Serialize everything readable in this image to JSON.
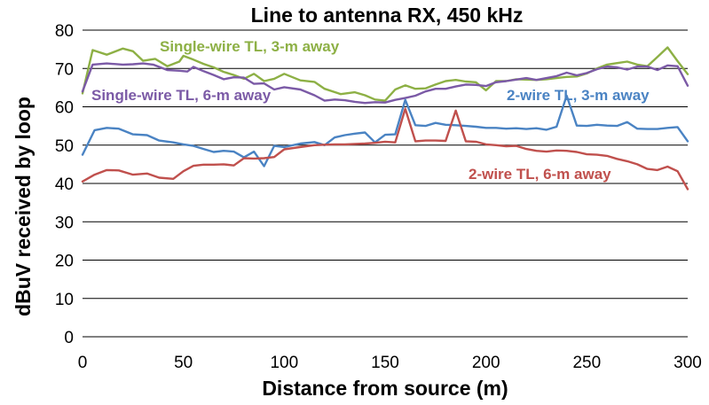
{
  "chart_data": {
    "type": "line",
    "title": "Line to antenna RX, 450 kHz",
    "xlabel": "Distance from source (m)",
    "ylabel": "dBuV received by loop",
    "xlim": [
      0,
      300
    ],
    "ylim": [
      0,
      80
    ],
    "xticks": [
      "0",
      "50",
      "100",
      "150",
      "200",
      "250",
      "300"
    ],
    "yticks": [
      "0",
      "10",
      "20",
      "30",
      "40",
      "50",
      "60",
      "70",
      "80"
    ],
    "grid": "horizontal",
    "series": [
      {
        "name": "Single-wire TL, 3-m away",
        "color": "#8db045",
        "x": [
          0,
          5,
          12,
          20,
          25,
          30,
          36,
          42,
          48,
          50,
          55,
          60,
          65,
          70,
          75,
          80,
          85,
          90,
          95,
          100,
          108,
          115,
          120,
          128,
          135,
          140,
          145,
          150,
          155,
          160,
          165,
          170,
          175,
          180,
          185,
          190,
          195,
          200,
          205,
          210,
          215,
          220,
          225,
          230,
          235,
          240,
          245,
          250,
          255,
          260,
          265,
          270,
          275,
          280,
          285,
          290,
          295,
          300
        ],
        "y": [
          63.5,
          74.8,
          73.6,
          75.2,
          74.5,
          72.0,
          72.5,
          70.6,
          71.8,
          73.3,
          72.3,
          71.2,
          70.3,
          69.1,
          68.3,
          67.3,
          68.6,
          66.7,
          67.3,
          68.6,
          66.9,
          66.5,
          64.7,
          63.3,
          63.8,
          63.0,
          61.9,
          61.6,
          64.5,
          65.6,
          64.7,
          64.8,
          65.8,
          66.7,
          67.0,
          66.6,
          66.4,
          64.3,
          66.7,
          66.7,
          67.2,
          67.1,
          67.0,
          67.2,
          67.5,
          67.8,
          67.9,
          68.7,
          70.0,
          71.0,
          71.4,
          71.8,
          71.0,
          70.6,
          73.0,
          75.5,
          71.9,
          68.5
        ]
      },
      {
        "name": "Single-wire TL, 6-m away",
        "color": "#7b5aa6",
        "x": [
          0,
          5,
          12,
          20,
          25,
          30,
          35,
          42,
          48,
          52,
          55,
          60,
          65,
          70,
          75,
          80,
          85,
          90,
          95,
          100,
          108,
          115,
          120,
          125,
          130,
          135,
          140,
          145,
          150,
          155,
          160,
          165,
          170,
          175,
          180,
          185,
          190,
          195,
          200,
          205,
          210,
          215,
          220,
          225,
          230,
          235,
          240,
          245,
          250,
          255,
          260,
          265,
          270,
          275,
          280,
          285,
          290,
          295,
          300
        ],
        "y": [
          64.0,
          71.0,
          71.3,
          71.0,
          71.1,
          71.3,
          71.0,
          69.6,
          69.4,
          69.2,
          70.4,
          69.3,
          68.3,
          67.2,
          67.7,
          67.6,
          66.0,
          66.1,
          64.5,
          65.1,
          64.5,
          63.0,
          61.6,
          61.9,
          61.7,
          61.3,
          61.0,
          61.2,
          61.1,
          61.8,
          62.3,
          62.9,
          64.0,
          64.7,
          64.7,
          65.3,
          65.8,
          65.7,
          65.4,
          66.4,
          66.7,
          67.1,
          67.5,
          67.0,
          67.5,
          68.0,
          68.9,
          68.2,
          68.8,
          69.8,
          70.5,
          70.3,
          69.7,
          70.5,
          70.5,
          69.6,
          70.8,
          70.6,
          65.5
        ]
      },
      {
        "name": "2-wire TL, 3-m away",
        "color": "#4a83c3",
        "x": [
          0,
          6,
          12,
          18,
          25,
          32,
          38,
          45,
          50,
          55,
          60,
          65,
          70,
          75,
          80,
          85,
          90,
          95,
          100,
          108,
          115,
          120,
          125,
          130,
          135,
          140,
          145,
          150,
          155,
          160,
          165,
          170,
          175,
          180,
          185,
          190,
          195,
          200,
          205,
          210,
          215,
          220,
          225,
          230,
          235,
          240,
          245,
          250,
          255,
          260,
          265,
          270,
          275,
          280,
          285,
          290,
          295,
          300
        ],
        "y": [
          47.5,
          53.9,
          54.5,
          54.3,
          52.8,
          52.6,
          51.2,
          50.7,
          50.2,
          49.8,
          49.0,
          48.2,
          48.5,
          48.3,
          46.8,
          48.3,
          44.5,
          49.8,
          49.5,
          50.4,
          50.8,
          50.0,
          52.0,
          52.6,
          53.0,
          53.3,
          50.7,
          52.7,
          52.8,
          61.8,
          55.2,
          55.0,
          55.8,
          55.3,
          55.2,
          55.0,
          54.8,
          54.5,
          54.5,
          54.3,
          54.4,
          54.2,
          54.4,
          54.0,
          54.8,
          62.9,
          55.1,
          55.0,
          55.3,
          55.1,
          55.0,
          56.0,
          54.3,
          54.2,
          54.2,
          54.5,
          54.7,
          51.0
        ]
      },
      {
        "name": "2-wire TL, 6-m away",
        "color": "#c0504d",
        "x": [
          0,
          6,
          12,
          18,
          25,
          32,
          38,
          45,
          50,
          55,
          60,
          65,
          70,
          75,
          80,
          85,
          90,
          95,
          100,
          108,
          115,
          120,
          125,
          130,
          135,
          140,
          145,
          150,
          155,
          160,
          165,
          170,
          175,
          180,
          185,
          190,
          195,
          200,
          205,
          210,
          215,
          220,
          225,
          230,
          235,
          240,
          245,
          250,
          255,
          260,
          265,
          270,
          275,
          280,
          285,
          290,
          295,
          300
        ],
        "y": [
          40.5,
          42.3,
          43.5,
          43.4,
          42.3,
          42.6,
          41.5,
          41.2,
          43.2,
          44.6,
          44.9,
          44.9,
          45.0,
          44.7,
          46.6,
          46.5,
          46.6,
          46.9,
          48.9,
          49.5,
          50.0,
          50.1,
          50.2,
          50.2,
          50.3,
          50.4,
          50.6,
          50.9,
          50.7,
          59.5,
          51.0,
          51.2,
          51.2,
          51.1,
          59.0,
          51.0,
          50.9,
          50.2,
          50.0,
          49.7,
          49.8,
          49.0,
          48.5,
          48.3,
          48.6,
          48.5,
          48.2,
          47.6,
          47.5,
          47.2,
          46.4,
          45.8,
          45.0,
          43.8,
          43.5,
          44.4,
          43.2,
          38.5
        ]
      }
    ],
    "annotations": [
      {
        "text": "Single-wire TL, 3-m away",
        "color": "#8db045"
      },
      {
        "text": "Single-wire TL, 6-m away",
        "color": "#7b5aa6"
      },
      {
        "text": "2-wire TL, 3-m away",
        "color": "#4a83c3"
      },
      {
        "text": "2-wire TL, 6-m away",
        "color": "#c0504d"
      }
    ]
  }
}
